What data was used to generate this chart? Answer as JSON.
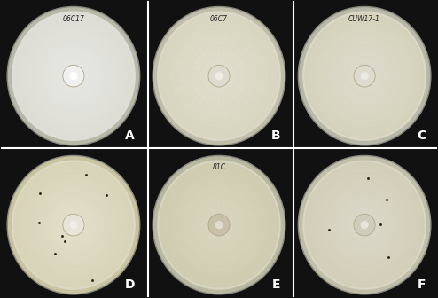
{
  "figure_width": 4.94,
  "figure_height": 3.36,
  "dpi": 100,
  "bg_color": "#111111",
  "labels": [
    "A",
    "B",
    "C",
    "D",
    "E",
    "F"
  ],
  "label_fontsize": 10,
  "label_color": "white",
  "panel_bg": "#111111",
  "dish_rim_colors": [
    "#b8b8a8",
    "#c0bea8",
    "#b8b8a8",
    "#c8c4a0",
    "#b8b8a0",
    "#c0bea8"
  ],
  "dish_agar_colors": [
    "#ddddd5",
    "#d8d5c0",
    "#d5d2bc",
    "#d8d4b8",
    "#d0ccb0",
    "#d2ceb8"
  ],
  "dish_gradient_inner": [
    "#e8e8e4",
    "#e4e0d0",
    "#e0ddd0",
    "#e4e0cc",
    "#dcd8c0",
    "#dedacc"
  ],
  "center_plug_colors": [
    "#f0f0ee",
    "#dedad0",
    "#dedad0",
    "#e8e4d8",
    "#c8c0a8",
    "#d0ccbc"
  ],
  "center_dot_colors": [
    "#ffffff",
    "#f0ede0",
    "#eceae0",
    "#f0eeE4",
    "#e0dcd0",
    "#e8e4da"
  ],
  "mycelium_strength": [
    0.0,
    0.8,
    0.5,
    0.3,
    0.7,
    0.4
  ],
  "mycelium_color": "#c8c4b0",
  "handwritten_labels": [
    "06C17",
    "06C7",
    "CUW17-1",
    "",
    "81C",
    ""
  ],
  "hw_label_color": "#222222",
  "hw_label_fontsize": 5.5,
  "spore_counts": [
    0,
    0,
    0,
    8,
    0,
    5
  ],
  "divider_color": "white",
  "divider_lw": 1.5
}
